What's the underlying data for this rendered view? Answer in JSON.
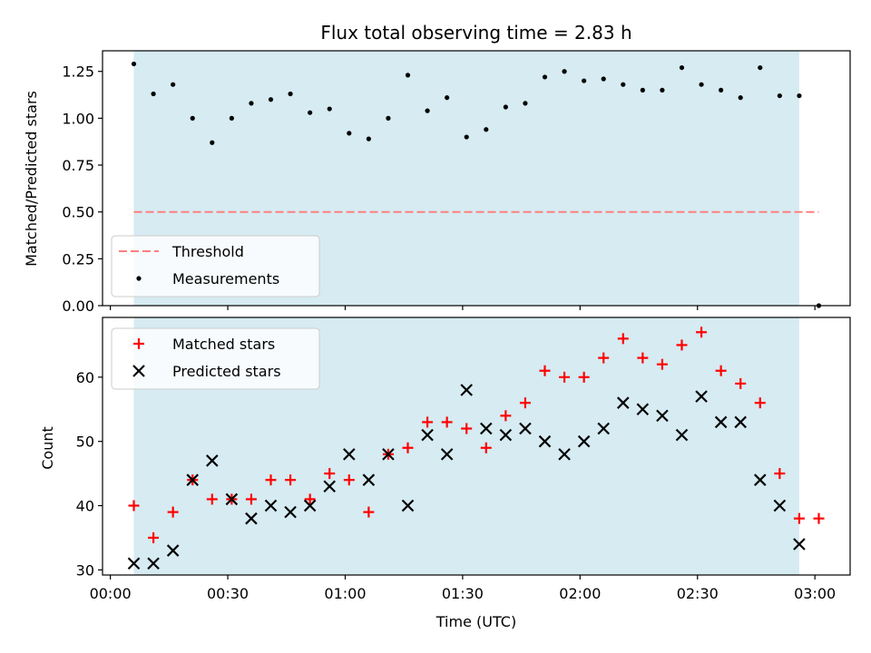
{
  "colors": {
    "shade": "#add8e6",
    "threshold": "#ff7f7f",
    "measurement": "#000000",
    "matched": "#ff0000",
    "predicted": "#000000"
  },
  "chart_data": [
    {
      "type": "scatter",
      "title": "Flux total observing time = 2.83 h",
      "xlabel": "",
      "ylabel": "Matched/Predicted stars",
      "xlim": [
        "23:58",
        "03:09"
      ],
      "ylim": [
        0,
        1.36
      ],
      "yticks": [
        "0.00",
        "0.25",
        "0.50",
        "0.75",
        "1.00",
        "1.25"
      ],
      "shaded_span": [
        "00:06",
        "02:56"
      ],
      "legend_position": "lower-left",
      "threshold": {
        "name": "Threshold",
        "y": 0.5,
        "x_range": [
          "00:06",
          "03:01"
        ]
      },
      "series": [
        {
          "name": "Measurements",
          "marker": "dot",
          "points": [
            [
              "00:06",
              1.29
            ],
            [
              "00:11",
              1.13
            ],
            [
              "00:16",
              1.18
            ],
            [
              "00:21",
              1.0
            ],
            [
              "00:26",
              0.87
            ],
            [
              "00:31",
              1.0
            ],
            [
              "00:36",
              1.08
            ],
            [
              "00:41",
              1.1
            ],
            [
              "00:46",
              1.13
            ],
            [
              "00:51",
              1.03
            ],
            [
              "00:56",
              1.05
            ],
            [
              "01:01",
              0.92
            ],
            [
              "01:06",
              0.89
            ],
            [
              "01:11",
              1.0
            ],
            [
              "01:16",
              1.23
            ],
            [
              "01:21",
              1.04
            ],
            [
              "01:26",
              1.11
            ],
            [
              "01:31",
              0.9
            ],
            [
              "01:36",
              0.94
            ],
            [
              "01:41",
              1.06
            ],
            [
              "01:46",
              1.08
            ],
            [
              "01:51",
              1.22
            ],
            [
              "01:56",
              1.25
            ],
            [
              "02:01",
              1.2
            ],
            [
              "02:06",
              1.21
            ],
            [
              "02:11",
              1.18
            ],
            [
              "02:16",
              1.15
            ],
            [
              "02:21",
              1.15
            ],
            [
              "02:26",
              1.27
            ],
            [
              "02:31",
              1.18
            ],
            [
              "02:36",
              1.15
            ],
            [
              "02:41",
              1.11
            ],
            [
              "02:46",
              1.27
            ],
            [
              "02:51",
              1.12
            ],
            [
              "02:56",
              1.12
            ],
            [
              "03:01",
              0.0
            ]
          ]
        }
      ]
    },
    {
      "type": "scatter",
      "title": "",
      "xlabel": "Time (UTC)",
      "ylabel": "Count",
      "xlim": [
        "23:58",
        "03:09"
      ],
      "ylim": [
        29.2,
        69.3
      ],
      "yticks": [
        "30",
        "40",
        "50",
        "60"
      ],
      "xticks": [
        "00:00",
        "00:30",
        "01:00",
        "01:30",
        "02:00",
        "02:30",
        "03:00"
      ],
      "shaded_span": [
        "00:06",
        "02:56"
      ],
      "legend_position": "upper-left",
      "series": [
        {
          "name": "Matched stars",
          "marker": "plus",
          "points": [
            [
              "00:06",
              40
            ],
            [
              "00:11",
              35
            ],
            [
              "00:16",
              39
            ],
            [
              "00:21",
              44
            ],
            [
              "00:26",
              41
            ],
            [
              "00:31",
              41
            ],
            [
              "00:36",
              41
            ],
            [
              "00:41",
              44
            ],
            [
              "00:46",
              44
            ],
            [
              "00:51",
              41
            ],
            [
              "00:56",
              45
            ],
            [
              "01:01",
              44
            ],
            [
              "01:06",
              39
            ],
            [
              "01:11",
              48
            ],
            [
              "01:16",
              49
            ],
            [
              "01:21",
              53
            ],
            [
              "01:26",
              53
            ],
            [
              "01:31",
              52
            ],
            [
              "01:36",
              49
            ],
            [
              "01:41",
              54
            ],
            [
              "01:46",
              56
            ],
            [
              "01:51",
              61
            ],
            [
              "01:56",
              60
            ],
            [
              "02:01",
              60
            ],
            [
              "02:06",
              63
            ],
            [
              "02:11",
              66
            ],
            [
              "02:16",
              63
            ],
            [
              "02:21",
              62
            ],
            [
              "02:26",
              65
            ],
            [
              "02:31",
              67
            ],
            [
              "02:36",
              61
            ],
            [
              "02:41",
              59
            ],
            [
              "02:46",
              56
            ],
            [
              "02:51",
              45
            ],
            [
              "02:56",
              38
            ],
            [
              "03:01",
              38
            ]
          ]
        },
        {
          "name": "Predicted stars",
          "marker": "x",
          "points": [
            [
              "00:06",
              31
            ],
            [
              "00:11",
              31
            ],
            [
              "00:16",
              33
            ],
            [
              "00:21",
              44
            ],
            [
              "00:26",
              47
            ],
            [
              "00:31",
              41
            ],
            [
              "00:36",
              38
            ],
            [
              "00:41",
              40
            ],
            [
              "00:46",
              39
            ],
            [
              "00:51",
              40
            ],
            [
              "00:56",
              43
            ],
            [
              "01:01",
              48
            ],
            [
              "01:06",
              44
            ],
            [
              "01:11",
              48
            ],
            [
              "01:16",
              40
            ],
            [
              "01:21",
              51
            ],
            [
              "01:26",
              48
            ],
            [
              "01:31",
              58
            ],
            [
              "01:36",
              52
            ],
            [
              "01:41",
              51
            ],
            [
              "01:46",
              52
            ],
            [
              "01:51",
              50
            ],
            [
              "01:56",
              48
            ],
            [
              "02:01",
              50
            ],
            [
              "02:06",
              52
            ],
            [
              "02:11",
              56
            ],
            [
              "02:16",
              55
            ],
            [
              "02:21",
              54
            ],
            [
              "02:26",
              51
            ],
            [
              "02:31",
              57
            ],
            [
              "02:36",
              53
            ],
            [
              "02:41",
              53
            ],
            [
              "02:46",
              44
            ],
            [
              "02:51",
              40
            ],
            [
              "02:56",
              34
            ]
          ]
        }
      ]
    }
  ]
}
